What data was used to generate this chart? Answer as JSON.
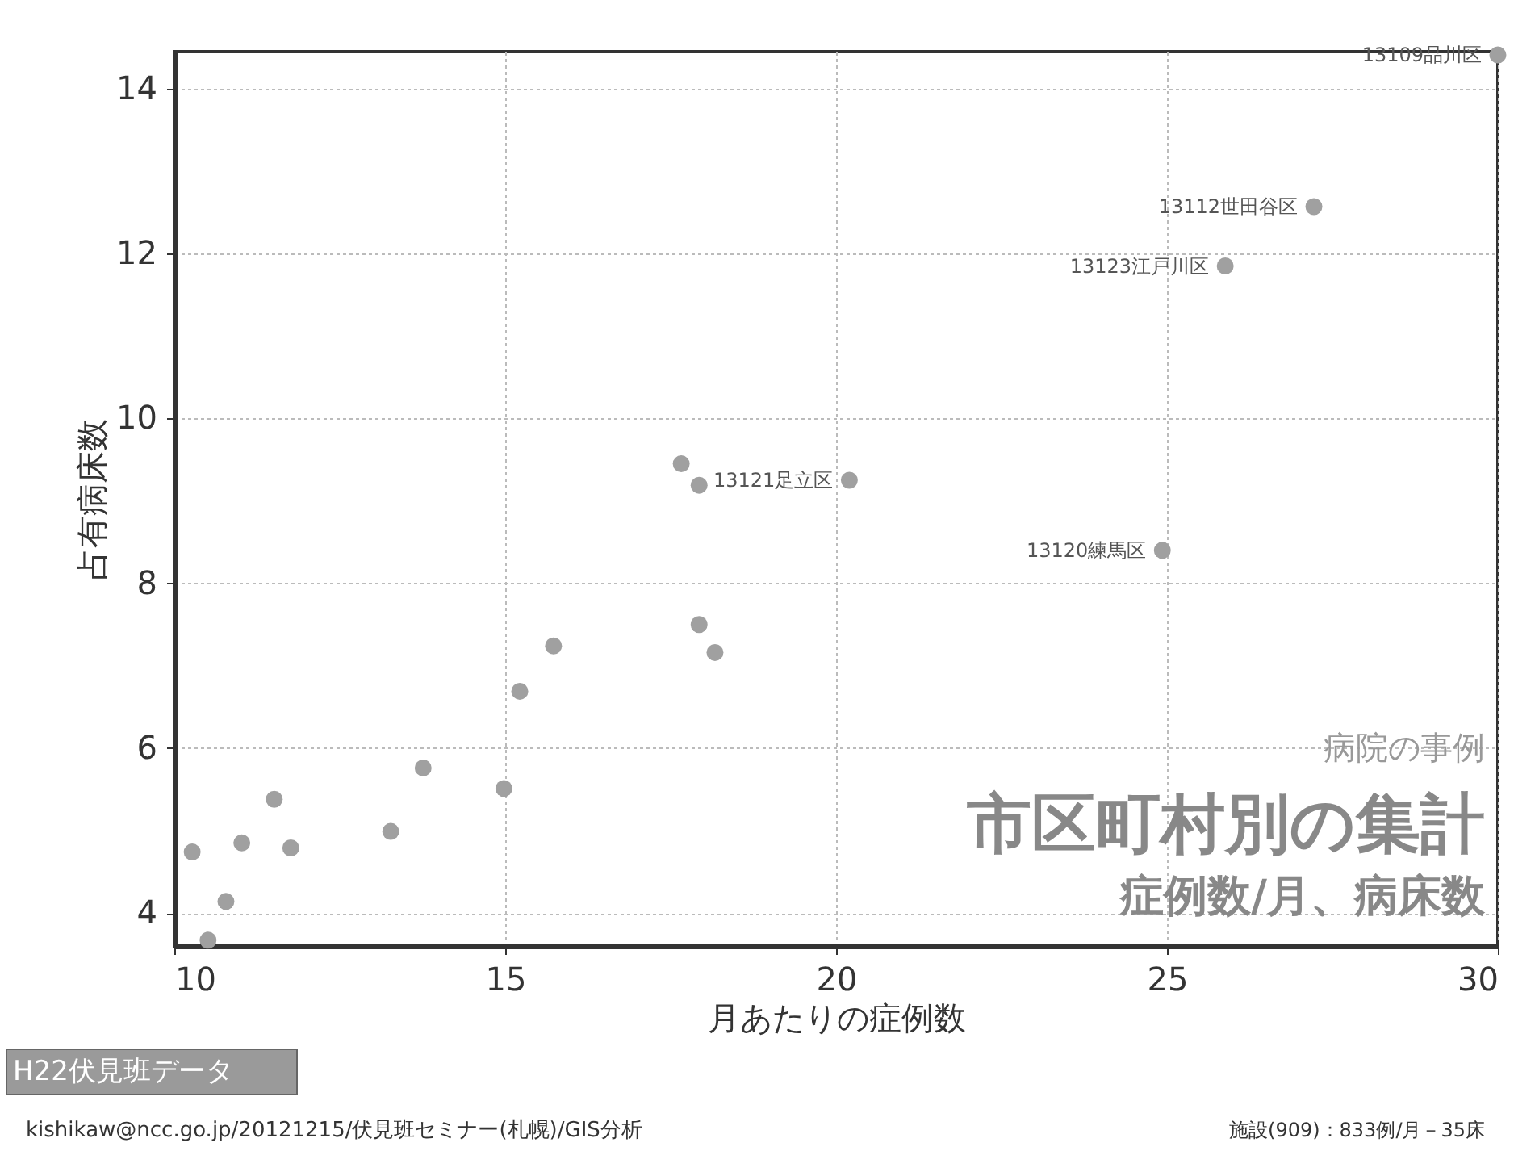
{
  "chart_data": {
    "type": "scatter",
    "xlabel": "月あたりの症例数",
    "ylabel": "占有病床数",
    "x": [
      10.27,
      10.51,
      10.78,
      11.02,
      11.51,
      11.76,
      13.27,
      13.76,
      14.98,
      15.22,
      15.73,
      17.66,
      17.93,
      17.93,
      18.17,
      20.2,
      24.93,
      25.88,
      27.22,
      30
    ],
    "values": [
      4.74,
      3.67,
      4.14,
      4.85,
      5.38,
      4.79,
      4.99,
      5.76,
      5.51,
      6.69,
      7.24,
      9.45,
      9.19,
      7.5,
      7.16,
      9.25,
      8.4,
      11.85,
      12.57,
      14.41
    ],
    "color": "#a0a0a0",
    "marker": "circle",
    "grid": true,
    "xlim": [
      10,
      30
    ],
    "ylim": [
      3.6,
      14.45
    ],
    "xticks": [
      10,
      15,
      20,
      25,
      30
    ],
    "yticks": [
      4,
      6,
      8,
      10,
      12,
      14
    ],
    "annotations": [
      {
        "text": "13109品川区",
        "x": 30,
        "y": 14.41
      },
      {
        "text": "13112世田谷区",
        "x": 27.22,
        "y": 12.57
      },
      {
        "text": "13123江戸川区",
        "x": 25.88,
        "y": 11.85
      },
      {
        "text": "13121足立区",
        "x": 20.2,
        "y": 9.25
      },
      {
        "text": "13120練馬区",
        "x": 24.93,
        "y": 8.4
      },
      "病院の事例",
      "市区町村別の集計",
      "症例数/月、病床数",
      "H22伏見班データ",
      "kishikaw@ncc.go.jp/20121215/伏見班セミナー(札幌)/GIS分析",
      "施設(909)：833例/月－35床"
    ]
  }
}
